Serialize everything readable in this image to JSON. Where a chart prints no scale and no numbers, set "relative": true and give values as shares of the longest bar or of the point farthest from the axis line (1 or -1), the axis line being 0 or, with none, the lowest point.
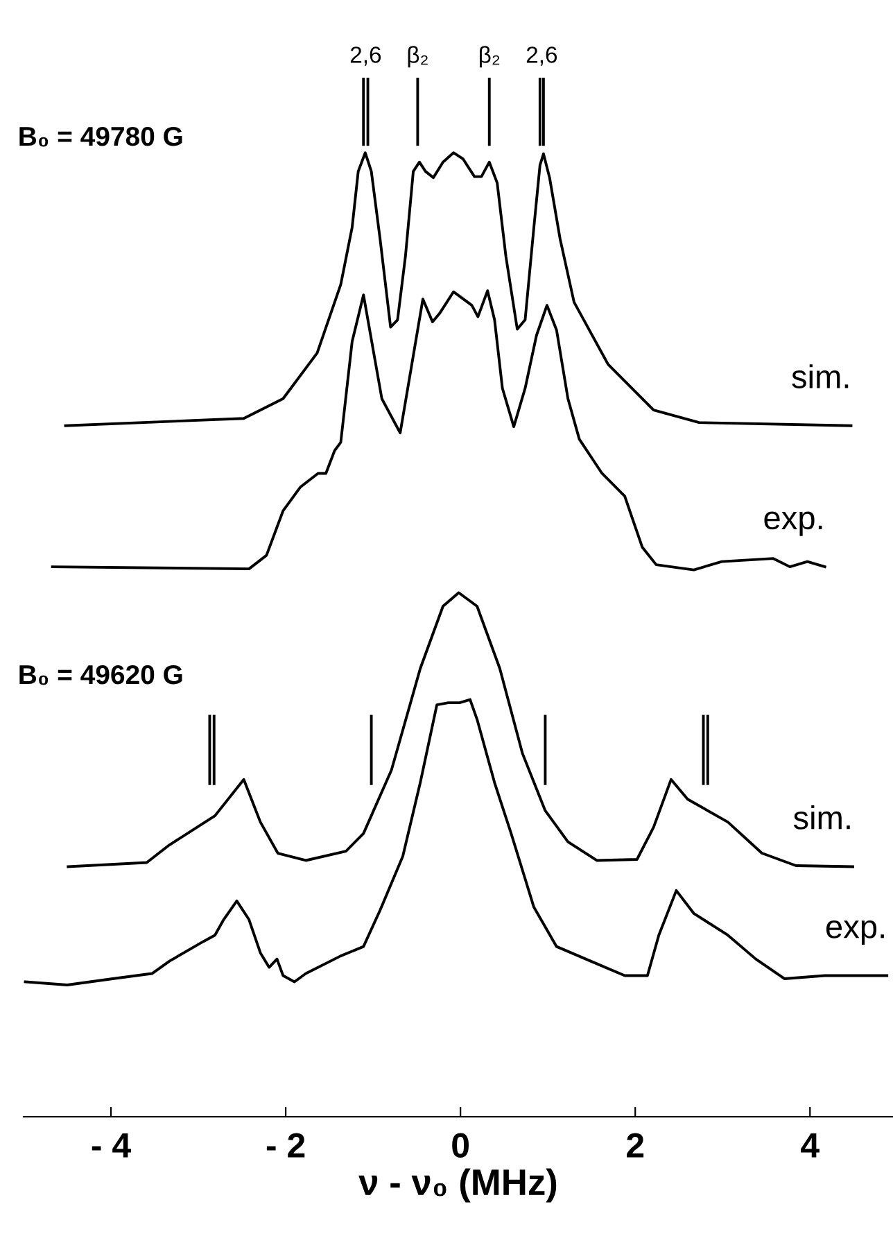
{
  "chart_data": {
    "type": "line",
    "relative": true,
    "xlabel": "ν - ν₀ (MHz)",
    "xlim": [
      -5,
      4.95
    ],
    "xticks": [
      {
        "value": -4,
        "label": "- 4"
      },
      {
        "value": -2,
        "label": "- 2"
      },
      0,
      2,
      4
    ],
    "tick_labels": "x",
    "grid": false,
    "legend": false,
    "marker": "none",
    "line_style": "solid",
    "annotations": [
      "B₀ = 49780 G",
      "B₀ = 49620 G",
      {
        "text": "2,6",
        "x": -1.085,
        "y": 1.0
      },
      {
        "text": "β₂",
        "x": -0.49,
        "y": 1.0
      },
      {
        "text": "β₂",
        "x": 0.33,
        "y": 1.0
      },
      {
        "text": "2,6",
        "x": 0.93,
        "y": 1.0
      }
    ],
    "series": [
      {
        "name": "sim.",
        "color": "#000000",
        "x": [
          -4.52,
          -2.48,
          -2.03,
          -1.64,
          -1.37,
          -1.24,
          -1.17,
          -1.09,
          -1.02,
          -0.92,
          -0.8,
          -0.72,
          -0.63,
          -0.54,
          -0.47,
          -0.4,
          -0.31,
          -0.2,
          -0.08,
          0.03,
          0.16,
          0.24,
          0.33,
          0.42,
          0.52,
          0.65,
          0.74,
          0.84,
          0.91,
          0.95,
          1.02,
          1.14,
          1.3,
          1.69,
          2.21,
          2.73,
          4.47
        ],
        "values": [
          0.666,
          0.673,
          0.692,
          0.736,
          0.802,
          0.857,
          0.911,
          0.929,
          0.911,
          0.846,
          0.761,
          0.768,
          0.829,
          0.911,
          0.92,
          0.911,
          0.905,
          0.92,
          0.929,
          0.923,
          0.906,
          0.906,
          0.92,
          0.9,
          0.829,
          0.759,
          0.768,
          0.857,
          0.917,
          0.928,
          0.905,
          0.846,
          0.785,
          0.725,
          0.681,
          0.669,
          0.666
        ]
      },
      {
        "name": "exp.",
        "color": "#000000",
        "x": [
          -4.67,
          -2.42,
          -2.22,
          -2.03,
          -1.83,
          -1.63,
          -1.54,
          -1.44,
          -1.37,
          -1.24,
          -1.11,
          -0.9,
          -0.69,
          -0.43,
          -0.32,
          -0.24,
          -0.08,
          0.13,
          0.2,
          0.31,
          0.39,
          0.48,
          0.61,
          0.74,
          0.87,
          0.99,
          1.1,
          1.23,
          1.36,
          1.62,
          1.88,
          2.08,
          2.24,
          2.67,
          2.99,
          3.58,
          3.77,
          3.97,
          4.17
        ],
        "values": [
          0.53,
          0.528,
          0.541,
          0.584,
          0.607,
          0.62,
          0.62,
          0.642,
          0.65,
          0.747,
          0.792,
          0.692,
          0.659,
          0.788,
          0.766,
          0.774,
          0.795,
          0.782,
          0.771,
          0.796,
          0.768,
          0.702,
          0.665,
          0.702,
          0.753,
          0.782,
          0.758,
          0.692,
          0.653,
          0.62,
          0.598,
          0.549,
          0.532,
          0.527,
          0.535,
          0.538,
          0.53,
          0.535,
          0.53
        ]
      },
      {
        "name": "sim.",
        "color": "#000000",
        "x": [
          -4.49,
          -3.59,
          -3.33,
          -2.81,
          -2.48,
          -2.29,
          -2.09,
          -1.77,
          -1.31,
          -1.11,
          -0.79,
          -0.46,
          -0.2,
          -0.02,
          0.19,
          0.45,
          0.71,
          0.97,
          1.23,
          1.56,
          2.02,
          2.21,
          2.41,
          2.6,
          3.06,
          3.45,
          3.84,
          4.49
        ],
        "values": [
          0.241,
          0.245,
          0.262,
          0.29,
          0.325,
          0.284,
          0.254,
          0.247,
          0.256,
          0.273,
          0.334,
          0.432,
          0.492,
          0.505,
          0.492,
          0.432,
          0.35,
          0.295,
          0.265,
          0.247,
          0.248,
          0.279,
          0.325,
          0.306,
          0.284,
          0.254,
          0.242,
          0.241
        ]
      },
      {
        "name": "exp.",
        "color": "#000000",
        "x": [
          -4.98,
          -4.5,
          -3.98,
          -3.53,
          -3.33,
          -2.94,
          -2.81,
          -2.71,
          -2.56,
          -2.42,
          -2.29,
          -2.19,
          -2.1,
          -2.03,
          -1.9,
          -1.77,
          -1.37,
          -1.11,
          -0.92,
          -0.66,
          -0.46,
          -0.27,
          -0.14,
          -0.01,
          0.11,
          0.19,
          0.39,
          0.58,
          0.84,
          1.1,
          1.49,
          1.88,
          2.14,
          2.27,
          2.47,
          2.67,
          3.06,
          3.38,
          3.71,
          4.17,
          4.88
        ],
        "values": [
          0.13,
          0.127,
          0.133,
          0.138,
          0.15,
          0.169,
          0.175,
          0.19,
          0.208,
          0.19,
          0.158,
          0.144,
          0.152,
          0.136,
          0.13,
          0.138,
          0.155,
          0.164,
          0.199,
          0.251,
          0.322,
          0.397,
          0.399,
          0.399,
          0.402,
          0.383,
          0.322,
          0.273,
          0.202,
          0.164,
          0.15,
          0.136,
          0.136,
          0.175,
          0.218,
          0.196,
          0.175,
          0.152,
          0.133,
          0.136,
          0.136
        ]
      },
      {
        "color": "#000000",
        "x": [
          -1.11,
          -1.11
        ],
        "values": [
          0.937,
          1.0
        ]
      },
      {
        "color": "#000000",
        "x": [
          -1.06,
          -1.06
        ],
        "values": [
          0.937,
          1.0
        ]
      },
      {
        "color": "#000000",
        "x": [
          -0.49,
          -0.49
        ],
        "values": [
          0.937,
          1.0
        ]
      },
      {
        "color": "#000000",
        "x": [
          0.33,
          0.33
        ],
        "values": [
          0.937,
          1.0
        ]
      },
      {
        "color": "#000000",
        "x": [
          0.91,
          0.91
        ],
        "values": [
          0.937,
          1.0
        ]
      },
      {
        "color": "#000000",
        "x": [
          0.95,
          0.95
        ],
        "values": [
          0.937,
          1.0
        ]
      },
      {
        "color": "#000000",
        "x": [
          -2.87,
          -2.87
        ],
        "values": [
          0.321,
          0.386
        ]
      },
      {
        "color": "#000000",
        "x": [
          -2.82,
          -2.82
        ],
        "values": [
          0.321,
          0.386
        ]
      },
      {
        "color": "#000000",
        "x": [
          -1.02,
          -1.02
        ],
        "values": [
          0.321,
          0.386
        ]
      },
      {
        "color": "#000000",
        "x": [
          0.97,
          0.97
        ],
        "values": [
          0.321,
          0.386
        ]
      },
      {
        "color": "#000000",
        "x": [
          2.78,
          2.78
        ],
        "values": [
          0.321,
          0.386
        ]
      },
      {
        "color": "#000000",
        "x": [
          2.83,
          2.83
        ],
        "values": [
          0.321,
          0.386
        ]
      }
    ]
  }
}
